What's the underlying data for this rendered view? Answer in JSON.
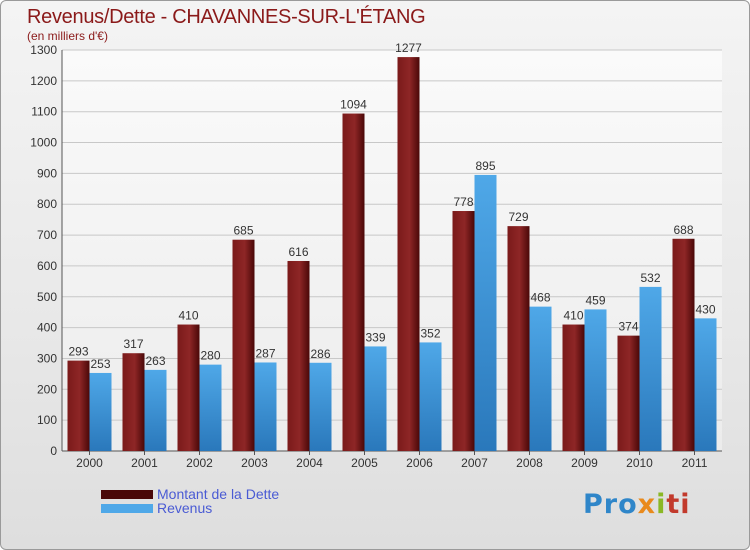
{
  "title": "Revenus/Dette - CHAVANNES-SUR-L'ÉTANG",
  "subtitle": "(en milliers d'€)",
  "legend": {
    "debt_label": "Montant de la Dette",
    "revenue_label": "Revenus"
  },
  "logo": {
    "part1": "Pro",
    "part2": "x",
    "part3": "i",
    "part4": "ti"
  },
  "colors": {
    "debt": "#7a1a1a",
    "debt_dark": "#4a0808",
    "revenue": "#4fa8e8",
    "revenue_dark": "#2a78bb",
    "grid": "#c8c8c8",
    "axis": "#555555",
    "text": "#333333"
  },
  "chart_data": {
    "type": "bar",
    "title": "Revenus/Dette - CHAVANNES-SUR-L'ÉTANG",
    "ylabel": "(en milliers d'€)",
    "xlabel": "",
    "ylim": [
      0,
      1300
    ],
    "yticks": [
      0,
      100,
      200,
      300,
      400,
      500,
      600,
      700,
      800,
      900,
      1000,
      1100,
      1200,
      1300
    ],
    "grid": true,
    "legend_position": "bottom-left",
    "categories": [
      "2000",
      "2001",
      "2002",
      "2003",
      "2004",
      "2005",
      "2006",
      "2007",
      "2008",
      "2009",
      "2010",
      "2011"
    ],
    "series": [
      {
        "name": "Montant de la Dette",
        "values": [
          293,
          317,
          410,
          685,
          616,
          1094,
          1277,
          778,
          729,
          410,
          374,
          688
        ]
      },
      {
        "name": "Revenus",
        "values": [
          253,
          263,
          280,
          287,
          286,
          339,
          352,
          895,
          468,
          459,
          532,
          430
        ]
      }
    ]
  }
}
